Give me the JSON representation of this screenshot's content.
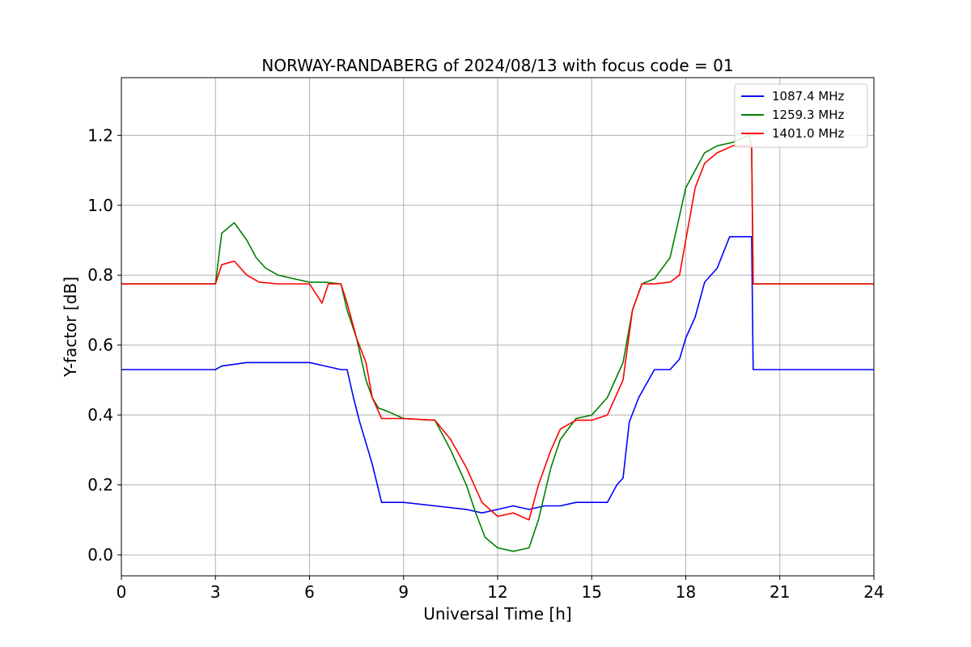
{
  "chart_data": {
    "type": "line",
    "title": "NORWAY-RANDABERG of 2024/08/13 with focus code = 01",
    "xlabel": "Universal Time [h]",
    "ylabel": "Y-factor [dB]",
    "xlim": [
      0,
      24
    ],
    "ylim": [
      -0.06,
      1.365
    ],
    "xticks": [
      0,
      3,
      6,
      9,
      12,
      15,
      18,
      21,
      24
    ],
    "xtick_labels": [
      "0",
      "3",
      "6",
      "9",
      "12",
      "15",
      "18",
      "21",
      "24"
    ],
    "yticks": [
      0.0,
      0.2,
      0.4,
      0.6,
      0.8,
      1.0,
      1.2
    ],
    "ytick_labels": [
      "0.0",
      "0.2",
      "0.4",
      "0.6",
      "0.8",
      "1.0",
      "1.2"
    ],
    "grid": true,
    "legend_position": "top-right",
    "series": [
      {
        "name": "1087.4 MHz",
        "color": "#0000ff",
        "x": [
          0,
          3.0,
          3.2,
          4.0,
          5.0,
          6.0,
          6.5,
          7.0,
          7.2,
          7.4,
          7.6,
          7.8,
          8.0,
          8.3,
          9.0,
          10.0,
          11.0,
          11.5,
          12.0,
          12.5,
          13.0,
          13.5,
          14.0,
          14.5,
          15.0,
          15.5,
          15.8,
          16.0,
          16.2,
          16.5,
          17.0,
          17.5,
          17.8,
          18.0,
          18.3,
          18.6,
          19.0,
          19.4,
          19.8,
          20.1,
          20.15,
          21.0,
          22.0,
          23.0,
          24.0
        ],
        "y": [
          0.53,
          0.53,
          0.54,
          0.55,
          0.55,
          0.55,
          0.54,
          0.53,
          0.53,
          0.45,
          0.38,
          0.32,
          0.26,
          0.15,
          0.15,
          0.14,
          0.13,
          0.12,
          0.13,
          0.14,
          0.13,
          0.14,
          0.14,
          0.15,
          0.15,
          0.15,
          0.2,
          0.22,
          0.38,
          0.45,
          0.53,
          0.53,
          0.56,
          0.62,
          0.68,
          0.78,
          0.82,
          0.91,
          0.91,
          0.91,
          0.53,
          0.53,
          0.53,
          0.53,
          0.53
        ]
      },
      {
        "name": "1259.3 MHz",
        "color": "#008000",
        "x": [
          0,
          3.0,
          3.2,
          3.6,
          4.0,
          4.3,
          4.6,
          5.0,
          5.5,
          6.0,
          6.5,
          7.0,
          7.2,
          7.5,
          7.8,
          8.0,
          8.2,
          8.5,
          9.0,
          10.0,
          10.5,
          11.0,
          11.3,
          11.6,
          12.0,
          12.5,
          13.0,
          13.3,
          13.7,
          14.0,
          14.5,
          15.0,
          15.5,
          16.0,
          16.3,
          16.6,
          17.0,
          17.5,
          17.8,
          18.0,
          18.3,
          18.6,
          19.0,
          19.5,
          20.0,
          20.1,
          20.15,
          21.0,
          22.0,
          23.0,
          24.0
        ],
        "y": [
          0.775,
          0.775,
          0.92,
          0.95,
          0.9,
          0.85,
          0.82,
          0.8,
          0.79,
          0.78,
          0.78,
          0.775,
          0.7,
          0.62,
          0.5,
          0.45,
          0.42,
          0.41,
          0.39,
          0.385,
          0.3,
          0.2,
          0.12,
          0.05,
          0.02,
          0.01,
          0.02,
          0.1,
          0.25,
          0.33,
          0.39,
          0.4,
          0.45,
          0.55,
          0.7,
          0.775,
          0.79,
          0.85,
          0.97,
          1.05,
          1.1,
          1.15,
          1.17,
          1.18,
          1.2,
          1.17,
          0.775,
          0.775,
          0.775,
          0.775,
          0.775
        ]
      },
      {
        "name": "1401.0 MHz",
        "color": "#ff0000",
        "x": [
          0,
          3.0,
          3.2,
          3.6,
          4.0,
          4.4,
          5.0,
          6.0,
          6.4,
          6.6,
          7.0,
          7.2,
          7.5,
          7.8,
          8.0,
          8.3,
          9.0,
          10.0,
          10.5,
          11.0,
          11.5,
          12.0,
          12.5,
          13.0,
          13.3,
          13.7,
          14.0,
          14.5,
          15.0,
          15.5,
          16.0,
          16.3,
          16.6,
          17.0,
          17.5,
          17.8,
          18.0,
          18.3,
          18.6,
          19.0,
          19.5,
          20.0,
          20.1,
          20.15,
          21.0,
          22.0,
          23.0,
          24.0
        ],
        "y": [
          0.775,
          0.775,
          0.83,
          0.84,
          0.8,
          0.78,
          0.775,
          0.775,
          0.72,
          0.775,
          0.775,
          0.72,
          0.62,
          0.55,
          0.45,
          0.39,
          0.39,
          0.385,
          0.33,
          0.25,
          0.15,
          0.11,
          0.12,
          0.1,
          0.2,
          0.3,
          0.36,
          0.385,
          0.385,
          0.4,
          0.5,
          0.7,
          0.775,
          0.775,
          0.78,
          0.8,
          0.9,
          1.05,
          1.12,
          1.15,
          1.17,
          1.17,
          1.17,
          0.775,
          0.775,
          0.775,
          0.775,
          0.775
        ]
      }
    ]
  }
}
